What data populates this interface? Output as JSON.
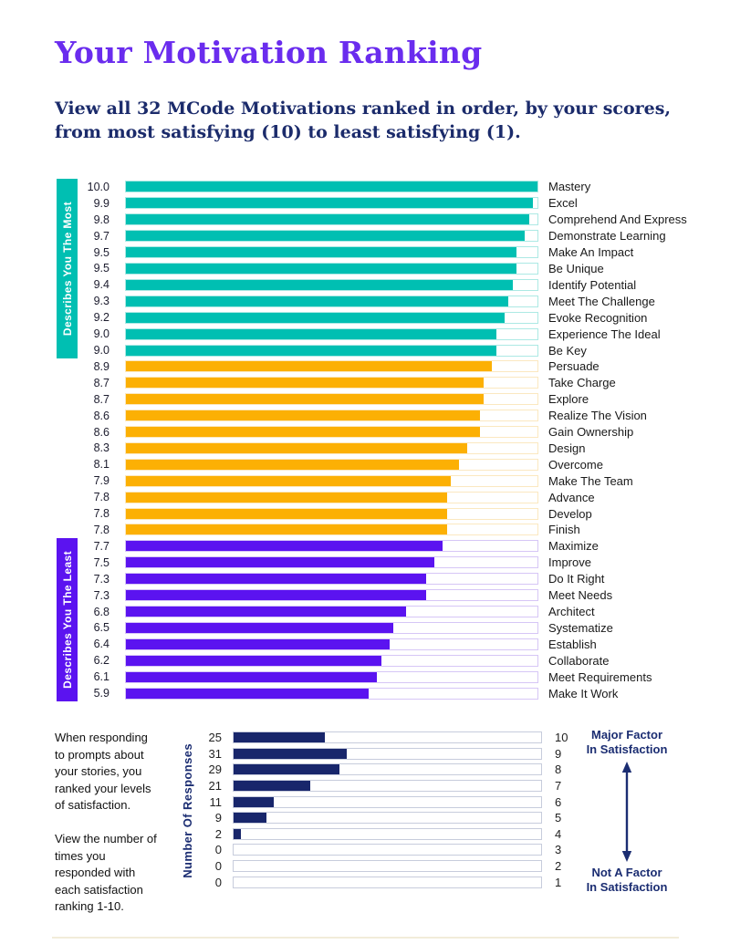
{
  "page": {
    "title": "Your Motivation Ranking",
    "subtitle_lines": [
      "View all 32 MCode Motivations ranked in order, by your scores,",
      "from most satisfying (10) to least satisfying (1)."
    ]
  },
  "colors": {
    "title": "#6A2CEE",
    "subtitle": "#1B2B6B",
    "most": {
      "fill": "#00BFB2",
      "track_border": "#ACE9E4"
    },
    "mid": {
      "fill": "#FCB004",
      "track_border": "#FBE8C0"
    },
    "least": {
      "fill": "#5B13F0",
      "track_border": "#D6C6F6"
    },
    "responses": {
      "fill": "#18266B",
      "track_border": "#C7CCDC"
    },
    "annotation": "#1B2D72",
    "divider": "#F2ECDA"
  },
  "ranking_chart": {
    "group_most_label": "Describes You The Most",
    "group_least_label": "Describes You The Least",
    "max_score": 10,
    "items": [
      {
        "score": "10.0",
        "value": 10.0,
        "label": "Mastery",
        "group": "most"
      },
      {
        "score": "9.9",
        "value": 9.9,
        "label": "Excel",
        "group": "most"
      },
      {
        "score": "9.8",
        "value": 9.8,
        "label": "Comprehend And Express",
        "group": "most"
      },
      {
        "score": "9.7",
        "value": 9.7,
        "label": "Demonstrate Learning",
        "group": "most"
      },
      {
        "score": "9.5",
        "value": 9.5,
        "label": "Make An Impact",
        "group": "most"
      },
      {
        "score": "9.5",
        "value": 9.5,
        "label": "Be Unique",
        "group": "most"
      },
      {
        "score": "9.4",
        "value": 9.4,
        "label": "Identify Potential",
        "group": "most"
      },
      {
        "score": "9.3",
        "value": 9.3,
        "label": "Meet The Challenge",
        "group": "most"
      },
      {
        "score": "9.2",
        "value": 9.2,
        "label": "Evoke Recognition",
        "group": "most"
      },
      {
        "score": "9.0",
        "value": 9.0,
        "label": "Experience The Ideal",
        "group": "most"
      },
      {
        "score": "9.0",
        "value": 9.0,
        "label": "Be Key",
        "group": "most"
      },
      {
        "score": "8.9",
        "value": 8.9,
        "label": "Persuade",
        "group": "mid"
      },
      {
        "score": "8.7",
        "value": 8.7,
        "label": "Take Charge",
        "group": "mid"
      },
      {
        "score": "8.7",
        "value": 8.7,
        "label": "Explore",
        "group": "mid"
      },
      {
        "score": "8.6",
        "value": 8.6,
        "label": "Realize The Vision",
        "group": "mid"
      },
      {
        "score": "8.6",
        "value": 8.6,
        "label": "Gain Ownership",
        "group": "mid"
      },
      {
        "score": "8.3",
        "value": 8.3,
        "label": "Design",
        "group": "mid"
      },
      {
        "score": "8.1",
        "value": 8.1,
        "label": "Overcome",
        "group": "mid"
      },
      {
        "score": "7.9",
        "value": 7.9,
        "label": "Make The Team",
        "group": "mid"
      },
      {
        "score": "7.8",
        "value": 7.8,
        "label": "Advance",
        "group": "mid"
      },
      {
        "score": "7.8",
        "value": 7.8,
        "label": "Develop",
        "group": "mid"
      },
      {
        "score": "7.8",
        "value": 7.8,
        "label": "Finish",
        "group": "mid"
      },
      {
        "score": "7.7",
        "value": 7.7,
        "label": "Maximize",
        "group": "least"
      },
      {
        "score": "7.5",
        "value": 7.5,
        "label": "Improve",
        "group": "least"
      },
      {
        "score": "7.3",
        "value": 7.3,
        "label": "Do It Right",
        "group": "least"
      },
      {
        "score": "7.3",
        "value": 7.3,
        "label": "Meet Needs",
        "group": "least"
      },
      {
        "score": "6.8",
        "value": 6.8,
        "label": "Architect",
        "group": "least"
      },
      {
        "score": "6.5",
        "value": 6.5,
        "label": "Systematize",
        "group": "least"
      },
      {
        "score": "6.4",
        "value": 6.4,
        "label": "Establish",
        "group": "least"
      },
      {
        "score": "6.2",
        "value": 6.2,
        "label": "Collaborate",
        "group": "least"
      },
      {
        "score": "6.1",
        "value": 6.1,
        "label": "Meet Requirements",
        "group": "least"
      },
      {
        "score": "5.9",
        "value": 5.9,
        "label": "Make It Work",
        "group": "least"
      }
    ]
  },
  "response_section": {
    "paragraph1": "When responding to prompts about your stories, you ranked your levels of satisfaction.",
    "paragraph2": "View the number of times you responded with each satisfaction ranking 1-10.",
    "axis_label": "Number Of Responses",
    "xmax": 84,
    "rows": [
      {
        "count": 25,
        "rank": "10"
      },
      {
        "count": 31,
        "rank": "9"
      },
      {
        "count": 29,
        "rank": "8"
      },
      {
        "count": 21,
        "rank": "7"
      },
      {
        "count": 11,
        "rank": "6"
      },
      {
        "count": 9,
        "rank": "5"
      },
      {
        "count": 2,
        "rank": "4"
      },
      {
        "count": 0,
        "rank": "3"
      },
      {
        "count": 0,
        "rank": "2"
      },
      {
        "count": 0,
        "rank": "1"
      }
    ],
    "annotation_top": [
      "Major Factor",
      "In Satisfaction"
    ],
    "annotation_bottom": [
      "Not A Factor",
      "In Satisfaction"
    ]
  },
  "chart_data": [
    {
      "type": "bar",
      "orientation": "horizontal",
      "title": "Your Motivation Ranking",
      "categories": [
        "Mastery",
        "Excel",
        "Comprehend And Express",
        "Demonstrate Learning",
        "Make An Impact",
        "Be Unique",
        "Identify Potential",
        "Meet The Challenge",
        "Evoke Recognition",
        "Experience The Ideal",
        "Be Key",
        "Persuade",
        "Take Charge",
        "Explore",
        "Realize The Vision",
        "Gain Ownership",
        "Design",
        "Overcome",
        "Make The Team",
        "Advance",
        "Develop",
        "Finish",
        "Maximize",
        "Improve",
        "Do It Right",
        "Meet Needs",
        "Architect",
        "Systematize",
        "Establish",
        "Collaborate",
        "Meet Requirements",
        "Make It Work"
      ],
      "values": [
        10.0,
        9.9,
        9.8,
        9.7,
        9.5,
        9.5,
        9.4,
        9.3,
        9.2,
        9.0,
        9.0,
        8.9,
        8.7,
        8.7,
        8.6,
        8.6,
        8.3,
        8.1,
        7.9,
        7.8,
        7.8,
        7.8,
        7.7,
        7.5,
        7.3,
        7.3,
        6.8,
        6.5,
        6.4,
        6.2,
        6.1,
        5.9
      ],
      "xlim": [
        0,
        10
      ],
      "group_colors": {
        "most": "#00BFB2",
        "mid": "#FCB004",
        "least": "#5B13F0"
      },
      "group_sizes": {
        "most": 11,
        "mid": 11,
        "least": 10
      },
      "legend": [
        "Describes You The Most",
        "Describes You The Least"
      ],
      "grid": false
    },
    {
      "type": "bar",
      "orientation": "horizontal",
      "title": "",
      "ylabel": "Number Of Responses",
      "categories": [
        "10",
        "9",
        "8",
        "7",
        "6",
        "5",
        "4",
        "3",
        "2",
        "1"
      ],
      "values": [
        25,
        31,
        29,
        21,
        11,
        9,
        2,
        0,
        0,
        0
      ],
      "xlim": [
        0,
        84
      ],
      "bar_color": "#18266B",
      "annotations": [
        "Major Factor In Satisfaction",
        "Not A Factor In Satisfaction"
      ],
      "grid": false
    }
  ]
}
